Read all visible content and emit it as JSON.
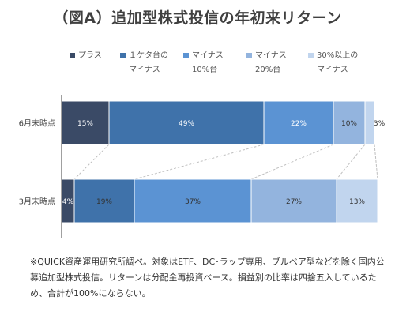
{
  "title": "（図A）追加型株式投信の年初来リターン",
  "legend": [
    {
      "line1": "プラス",
      "line2": "",
      "color": "#3a4a66"
    },
    {
      "line1": "１ケタ台の",
      "line2": "マイナス",
      "color": "#3f72aa"
    },
    {
      "line1": "マイナス",
      "line2": "10%台",
      "color": "#5b93d3"
    },
    {
      "line1": "マイナス",
      "line2": "20%台",
      "color": "#93b4de"
    },
    {
      "line1": "30%以上の",
      "line2": "マイナス",
      "color": "#c1d5ee"
    }
  ],
  "chart_data": {
    "type": "bar",
    "orientation": "horizontal",
    "stacked": "percent",
    "categories": [
      "6月末時点",
      "3月末時点"
    ],
    "series": [
      {
        "name": "プラス",
        "values": [
          15,
          4
        ],
        "color": "#3a4a66"
      },
      {
        "name": "１ケタ台のマイナス",
        "values": [
          49,
          19
        ],
        "color": "#3f72aa"
      },
      {
        "name": "マイナス10%台",
        "values": [
          22,
          37
        ],
        "color": "#5b93d3"
      },
      {
        "name": "マイナス20%台",
        "values": [
          10,
          27
        ],
        "color": "#93b4de"
      },
      {
        "name": "30%以上のマイナス",
        "values": [
          3,
          13
        ],
        "color": "#c1d5ee"
      }
    ],
    "data_labels": [
      [
        "15%",
        "49%",
        "22%",
        "10%",
        "3%"
      ],
      [
        "4%",
        "19%",
        "37%",
        "27%",
        "13%"
      ]
    ],
    "label_colors": [
      [
        "#ffffff",
        "#ffffff",
        "#ffffff",
        "#333333",
        "#333333"
      ],
      [
        "#ffffff",
        "#333333",
        "#333333",
        "#333333",
        "#333333"
      ]
    ],
    "xlim": [
      0,
      100
    ],
    "legend_position": "top",
    "grid": false
  },
  "footnote": "※QUICK資産運用研究所調べ。対象はETF、DC･ラップ専用、ブルベア型などを除く国内公募追加型株式投信。リターンは分配金再投資ベース。損益別の比率は四捨五入しているため、合計が100%にならない。"
}
